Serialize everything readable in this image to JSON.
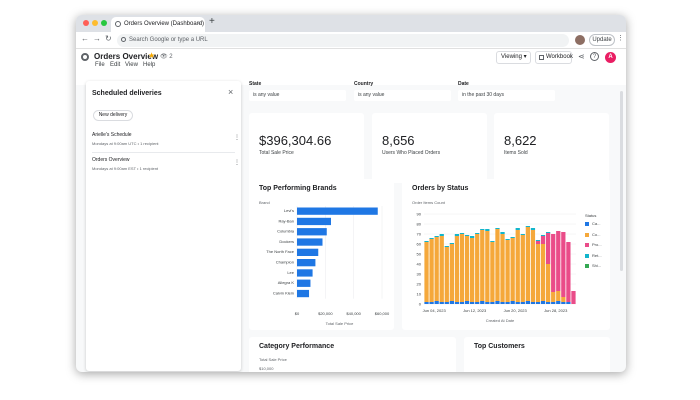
{
  "browser": {
    "tab_title": "Orders Overview (Dashboard)",
    "tab_close": "×",
    "new_tab": "+",
    "omnibox_placeholder": "Search Google or type a URL",
    "update_label": "Update",
    "back": "←",
    "forward": "→",
    "reload": "↻",
    "menu": "⋮",
    "traffic_lights": [
      "#ff5f57",
      "#febc2e",
      "#28c840"
    ]
  },
  "app": {
    "title": "Orders Overview",
    "star": "★",
    "viewer_count": "2",
    "viewer_icon": "👁",
    "menu": [
      "File",
      "Edit",
      "View",
      "Help"
    ],
    "viewing_label": "Viewing ▾",
    "workbook_label": "Workbook",
    "share_icon": "⋖",
    "help_icon": "?",
    "avatar_letter": "A"
  },
  "deliveries": {
    "title": "Scheduled deliveries",
    "close": "×",
    "new_label": "New delivery",
    "items": [
      {
        "name": "Arielle's Schedule",
        "detail": "Mondays at 9:00am UTC • 1 recipient",
        "menu": "⋮"
      },
      {
        "name": "Orders Overview",
        "detail": "Mondays at 9:00am EST • 1 recipient",
        "menu": "⋮"
      }
    ]
  },
  "filters": [
    {
      "label": "State",
      "value": "is any value"
    },
    {
      "label": "Country",
      "value": "is any value"
    },
    {
      "label": "Date",
      "value": "in the past 30 days"
    }
  ],
  "kpis": [
    {
      "value": "$396,304.66",
      "label": "Total Sale Price"
    },
    {
      "value": "8,656",
      "label": "Users Who Placed Orders"
    },
    {
      "value": "8,622",
      "label": "Items Sold"
    }
  ],
  "colors": {
    "accent_blue": "#1f77e4",
    "orange": "#f5a83b",
    "pink": "#ea4c89",
    "teal": "#12b5cb",
    "green": "#34a853"
  },
  "chart_data": [
    {
      "type": "bar",
      "orientation": "horizontal",
      "title": "Top Performing Brands",
      "subtitle": "Brand",
      "xlabel": "Total Sale Price",
      "categories": [
        "Levi's",
        "Ray-Ban",
        "Columbia",
        "Dockers",
        "The North Face",
        "Champion",
        "Lee",
        "Allegra K",
        "Calvin Klein"
      ],
      "values": [
        57000,
        24000,
        21000,
        18000,
        15000,
        13000,
        11000,
        9500,
        8500
      ],
      "xlim": [
        0,
        60000
      ],
      "xticks": [
        "$0",
        "$20,000",
        "$40,000",
        "$60,000"
      ],
      "color": "#1f77e4"
    },
    {
      "type": "bar",
      "stacked": true,
      "title": "Orders by Status",
      "subtitle": "Order Items Count",
      "xlabel": "Created At Date",
      "ylim": [
        0,
        90
      ],
      "yticks": [
        0,
        10,
        20,
        30,
        40,
        50,
        60,
        70,
        80,
        90
      ],
      "xticks": [
        "Jun 04, 2023",
        "Jun 12, 2023",
        "Jun 20, 2023",
        "Jun 28, 2023"
      ],
      "legend_title": "Status",
      "legend_position": "right",
      "series": [
        {
          "name": "Ca...",
          "color": "#1f77e4",
          "values": [
            2,
            2,
            3,
            2,
            2,
            3,
            2,
            2,
            3,
            2,
            2,
            3,
            2,
            2,
            3,
            2,
            2,
            3,
            2,
            2,
            3,
            2,
            2,
            3,
            2,
            2,
            3,
            2,
            2,
            0
          ]
        },
        {
          "name": "Co...",
          "color": "#f5a83b",
          "values": [
            60,
            63,
            64,
            66,
            55,
            57,
            66,
            68,
            65,
            64,
            68,
            71,
            71,
            60,
            72,
            68,
            62,
            63,
            72,
            67,
            74,
            72,
            58,
            57,
            38,
            10,
            10,
            5,
            0,
            0
          ]
        },
        {
          "name": "Pro...",
          "color": "#ea4c89",
          "values": [
            0,
            0,
            0,
            0,
            0,
            0,
            0,
            0,
            0,
            0,
            0,
            0,
            0,
            0,
            0,
            0,
            0,
            0,
            0,
            0,
            0,
            0,
            3,
            8,
            31,
            58,
            60,
            65,
            60,
            13
          ]
        },
        {
          "name": "Ret...",
          "color": "#12b5cb",
          "values": [
            1,
            1,
            1,
            2,
            1,
            1,
            2,
            1,
            1,
            2,
            1,
            1,
            2,
            1,
            1,
            2,
            1,
            1,
            2,
            1,
            1,
            2,
            1,
            1,
            1,
            0,
            0,
            0,
            0,
            0
          ]
        },
        {
          "name": "Shi...",
          "color": "#34a853",
          "values": [
            0,
            0,
            0,
            0,
            0,
            0,
            0,
            0,
            0,
            0,
            0,
            0,
            0,
            0,
            0,
            0,
            0,
            0,
            0,
            0,
            0,
            0,
            0,
            0,
            0,
            0,
            0,
            0,
            0,
            0
          ]
        }
      ]
    }
  ],
  "category_performance": {
    "title": "Category Performance",
    "sub": "Total Sale Price",
    "first_tick": "$10,000"
  },
  "top_customers": {
    "title": "Top Customers"
  }
}
